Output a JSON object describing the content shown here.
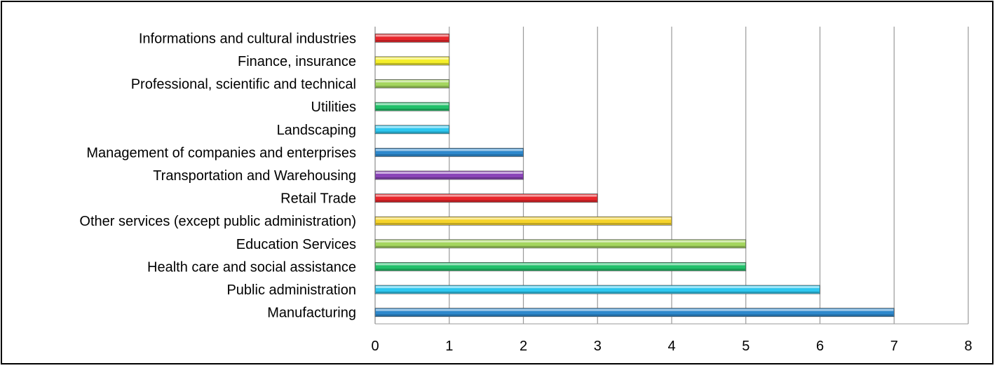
{
  "chart_data": {
    "type": "bar",
    "orientation": "horizontal",
    "categories": [
      "Manufacturing",
      "Public administration",
      "Health care and social assistance",
      "Education Services",
      "Other services (except public administration)",
      "Retail Trade",
      "Transportation and Warehousing",
      "Management of companies and enterprises",
      "Landscaping",
      "Utilities",
      "Professional, scientific and technical",
      "Finance, insurance",
      "Informations and cultural industries"
    ],
    "values": [
      7,
      6,
      5,
      5,
      4,
      3,
      2,
      2,
      1,
      1,
      1,
      1,
      1
    ],
    "bar_colors": [
      "#2e88cc",
      "#2ec8f0",
      "#22c06a",
      "#a4d65e",
      "#f5d32a",
      "#e8262b",
      "#8a44b8",
      "#2e88cc",
      "#2ec8f0",
      "#22c06a",
      "#a4d65e",
      "#f5ef2a",
      "#e8262b"
    ],
    "xlim": [
      0,
      8
    ],
    "xticks": [
      "0",
      "1",
      "2",
      "3",
      "4",
      "5",
      "6",
      "7",
      "8"
    ],
    "grid": "vertical",
    "title": "",
    "xlabel": "",
    "ylabel": "",
    "legend": "none"
  }
}
